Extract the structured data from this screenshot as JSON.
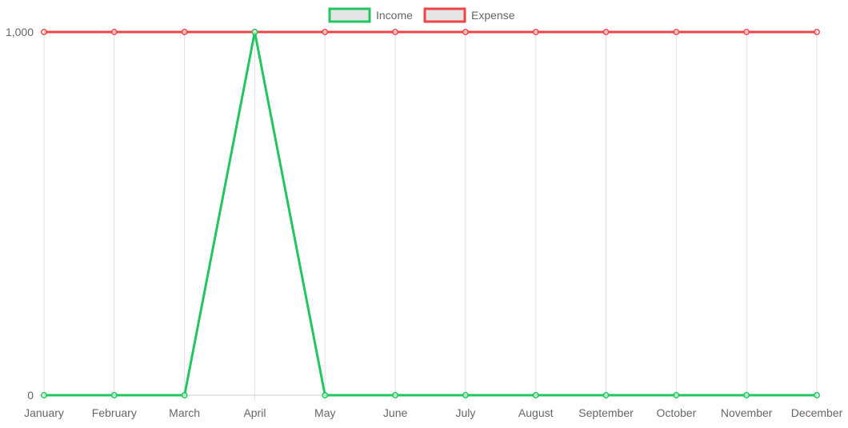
{
  "chart_data": {
    "type": "line",
    "categories": [
      "January",
      "February",
      "March",
      "April",
      "May",
      "June",
      "July",
      "August",
      "September",
      "October",
      "November",
      "December"
    ],
    "series": [
      {
        "name": "Income",
        "color": "#22c55e",
        "values": [
          0,
          0,
          0,
          1000,
          0,
          0,
          0,
          0,
          0,
          0,
          0,
          0
        ]
      },
      {
        "name": "Expense",
        "color": "#ef4444",
        "values": [
          1000,
          1000,
          1000,
          1000,
          1000,
          1000,
          1000,
          1000,
          1000,
          1000,
          1000,
          1000
        ]
      }
    ],
    "ylim": [
      0,
      1000
    ],
    "y_ticks": [
      "0",
      "1,000"
    ],
    "legend": "top-center",
    "grid": "vertical",
    "legend_box_fill": "#e5e5e5",
    "grid_color": "#e0e0e0"
  }
}
